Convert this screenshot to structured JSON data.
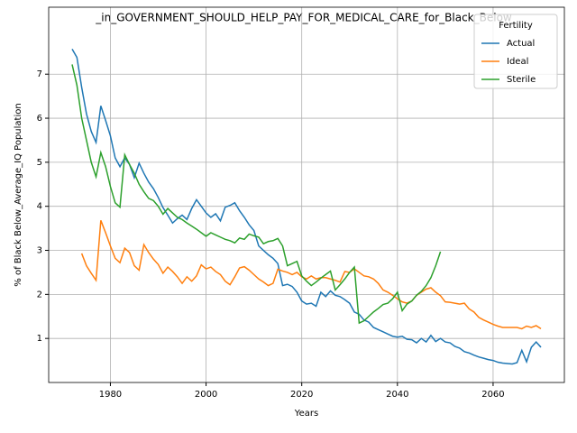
{
  "chart_data": {
    "type": "line",
    "title": "_in_GOVERNMENT_SHOULD_HELP_PAY_FOR_MEDICAL_CARE_for_Black_Below_",
    "xlabel": "Years",
    "ylabel": "% of Black Below_Average_IQ Population",
    "legend_title": "Fertility",
    "legend": "upper right",
    "grid": true,
    "x": [
      1972,
      1973,
      1974,
      1975,
      1976,
      1977,
      1978,
      1979,
      1980,
      1981,
      1982,
      1983,
      1984,
      1985,
      1986,
      1987,
      1988,
      1989,
      1990,
      1991,
      1992,
      1993,
      1994,
      1995,
      1996,
      1997,
      1998,
      1999,
      2000,
      2001,
      2002,
      2003,
      2004,
      2005,
      2006,
      2007,
      2008,
      2009,
      2010,
      2011,
      2012,
      2013,
      2014,
      2015,
      2016,
      2017,
      2018,
      2019,
      2020,
      2021,
      2022,
      2023,
      2024,
      2025,
      2026,
      2027,
      2028,
      2029,
      2030,
      2031,
      2032,
      2033,
      2034,
      2035,
      2036,
      2037,
      2038,
      2039,
      2040,
      2041,
      2042,
      2043,
      2044,
      2045,
      2046,
      2047,
      2048,
      2049,
      2050,
      2051,
      2052,
      2053,
      2054,
      2055,
      2056,
      2057,
      2058,
      2059,
      2060,
      2061,
      2062,
      2063,
      2064,
      2065,
      2066,
      2067,
      2068,
      2069,
      2070
    ],
    "xlim": [
      1967.1,
      2074.9
    ],
    "xticks": [
      1980,
      2000,
      2020,
      2040,
      2060
    ],
    "ylim": [
      0.0,
      8.52
    ],
    "yticks": [
      1,
      2,
      3,
      4,
      5,
      6,
      7
    ],
    "series": [
      {
        "name": "Actual",
        "color": "#1f77b4",
        "values": [
          7.57,
          7.38,
          6.7,
          6.1,
          5.7,
          5.45,
          6.28,
          5.95,
          5.6,
          5.1,
          4.9,
          5.1,
          4.95,
          4.65,
          4.98,
          4.75,
          4.55,
          4.4,
          4.2,
          3.97,
          3.8,
          3.62,
          3.72,
          3.8,
          3.7,
          3.95,
          4.15,
          4.0,
          3.85,
          3.75,
          3.83,
          3.67,
          3.98,
          4.02,
          4.08,
          3.9,
          3.75,
          3.58,
          3.45,
          3.1,
          3.0,
          2.9,
          2.82,
          2.7,
          2.2,
          2.23,
          2.18,
          2.05,
          1.85,
          1.78,
          1.8,
          1.73,
          2.05,
          1.95,
          2.08,
          1.98,
          1.95,
          1.88,
          1.8,
          1.6,
          1.55,
          1.42,
          1.37,
          1.25,
          1.2,
          1.15,
          1.1,
          1.05,
          1.03,
          1.05,
          0.98,
          0.97,
          0.9,
          1.0,
          0.92,
          1.07,
          0.93,
          1.0,
          0.92,
          0.9,
          0.82,
          0.78,
          0.7,
          0.67,
          0.62,
          0.58,
          0.55,
          0.52,
          0.5,
          0.46,
          0.44,
          0.43,
          0.42,
          0.45,
          0.73,
          0.47,
          0.8,
          0.92,
          0.8
        ]
      },
      {
        "name": "Ideal",
        "color": "#ff7f0e",
        "values": [
          null,
          null,
          2.93,
          2.65,
          2.48,
          2.32,
          3.68,
          3.4,
          3.1,
          2.82,
          2.72,
          3.05,
          2.95,
          2.65,
          2.55,
          3.13,
          2.95,
          2.8,
          2.68,
          2.48,
          2.62,
          2.52,
          2.4,
          2.25,
          2.4,
          2.3,
          2.42,
          2.67,
          2.58,
          2.62,
          2.52,
          2.45,
          2.3,
          2.22,
          2.4,
          2.6,
          2.63,
          2.55,
          2.45,
          2.35,
          2.28,
          2.2,
          2.25,
          2.57,
          2.53,
          2.5,
          2.45,
          2.5,
          2.4,
          2.35,
          2.42,
          2.35,
          2.38,
          2.38,
          2.35,
          2.32,
          2.28,
          2.52,
          2.5,
          2.58,
          2.5,
          2.42,
          2.4,
          2.35,
          2.25,
          2.1,
          2.05,
          1.98,
          1.9,
          1.83,
          1.8,
          1.85,
          1.98,
          2.05,
          2.12,
          2.15,
          2.05,
          1.97,
          1.83,
          1.82,
          1.8,
          1.78,
          1.8,
          1.67,
          1.6,
          1.48,
          1.42,
          1.37,
          1.32,
          1.28,
          1.25,
          1.25,
          1.25,
          1.25,
          1.22,
          1.28,
          1.25,
          1.29,
          1.22
        ]
      },
      {
        "name": "Sterile",
        "color": "#2ca02c",
        "values": [
          7.22,
          6.75,
          6.0,
          5.5,
          5.0,
          4.67,
          5.22,
          4.9,
          4.45,
          4.08,
          3.98,
          5.17,
          4.95,
          4.75,
          4.5,
          4.33,
          4.18,
          4.13,
          4.0,
          3.82,
          3.95,
          3.85,
          3.75,
          3.7,
          3.62,
          3.55,
          3.48,
          3.4,
          3.32,
          3.4,
          3.35,
          3.3,
          3.25,
          3.22,
          3.17,
          3.28,
          3.25,
          3.37,
          3.33,
          3.3,
          3.15,
          3.2,
          3.22,
          3.27,
          3.1,
          2.65,
          2.7,
          2.75,
          2.42,
          2.3,
          2.2,
          2.28,
          2.37,
          2.45,
          2.53,
          2.1,
          2.22,
          2.35,
          2.5,
          2.62,
          1.35,
          1.4,
          1.5,
          1.6,
          1.68,
          1.77,
          1.8,
          1.9,
          2.05,
          1.63,
          1.78,
          1.85,
          1.98,
          2.07,
          2.2,
          2.38,
          2.65,
          2.97,
          null,
          null,
          null,
          null,
          null,
          null,
          null,
          null,
          null,
          null,
          null,
          null,
          null,
          null,
          null,
          null,
          null,
          null,
          null,
          null,
          null
        ]
      }
    ]
  }
}
